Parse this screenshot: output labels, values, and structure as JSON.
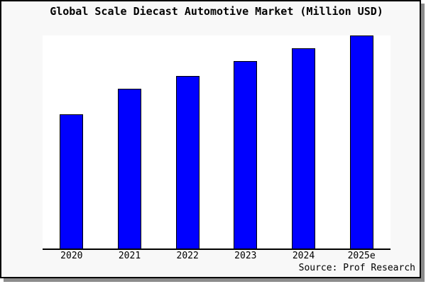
{
  "title": "Global Scale Diecast Automotive Market (Million USD)",
  "source": "Source: Prof Research",
  "chart_data": {
    "type": "bar",
    "title": "Global Scale Diecast Automotive Market (Million USD)",
    "categories": [
      "2020",
      "2021",
      "2022",
      "2023",
      "2024",
      "2025e"
    ],
    "values": [
      63,
      75,
      81,
      88,
      94,
      100
    ],
    "value_note": "y-axis has no tick labels; values estimated relative to tallest bar (2025e = 100)",
    "xlabel": "",
    "ylabel": "",
    "ylim": [
      0,
      100
    ],
    "grid": false,
    "legend": false,
    "bar_color": "#0000ff",
    "bar_edge_color": "#000000",
    "plot_bg": "#ffffff",
    "figure_bg": "#f8f8f8",
    "axis_color": "#000000"
  }
}
